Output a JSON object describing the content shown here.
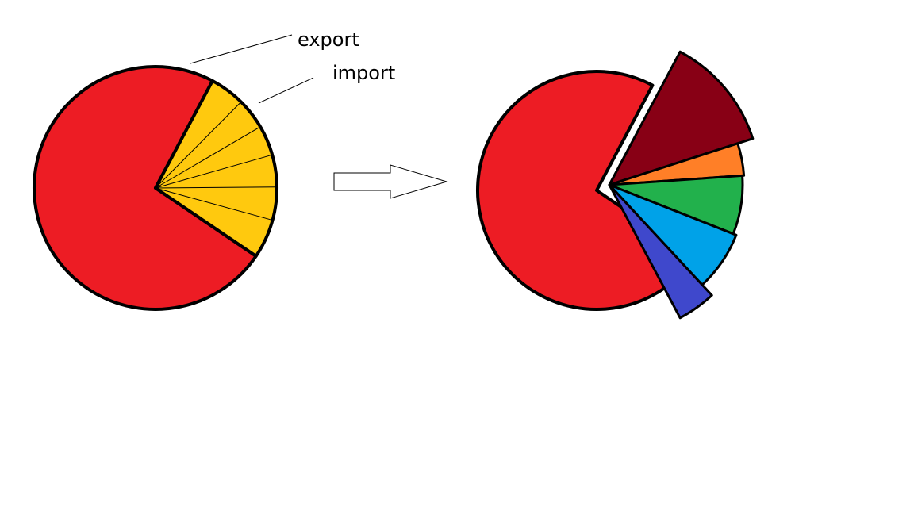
{
  "labels": {
    "export": "export",
    "import": "import"
  },
  "chart_data": [
    {
      "type": "pie",
      "slices": [
        {
          "label": "export",
          "value": 0.733,
          "color": "#ed1c24"
        },
        {
          "label": "import",
          "value": 0.267,
          "color": "#ffc90e",
          "subdivisions": [
            0.175,
            0.155,
            0.15,
            0.16,
            0.165,
            0.195
          ]
        }
      ]
    },
    {
      "type": "pie",
      "exploded": "import",
      "slices": [
        {
          "label": "export",
          "value": 0.733,
          "color": "#ed1c24"
        },
        {
          "label": "import",
          "value": 0.267,
          "parts": [
            {
              "value": 0.095,
              "color": "#880015"
            },
            {
              "value": 0.03,
              "color": "#ff7f27"
            },
            {
              "value": 0.055,
              "color": "#22b14c"
            },
            {
              "value": 0.055,
              "color": "#00a2e8"
            },
            {
              "value": 0.032,
              "color": "#3f48cc"
            }
          ]
        }
      ]
    }
  ],
  "arrow": {
    "fill": "#ffffff",
    "stroke": "#000000"
  }
}
